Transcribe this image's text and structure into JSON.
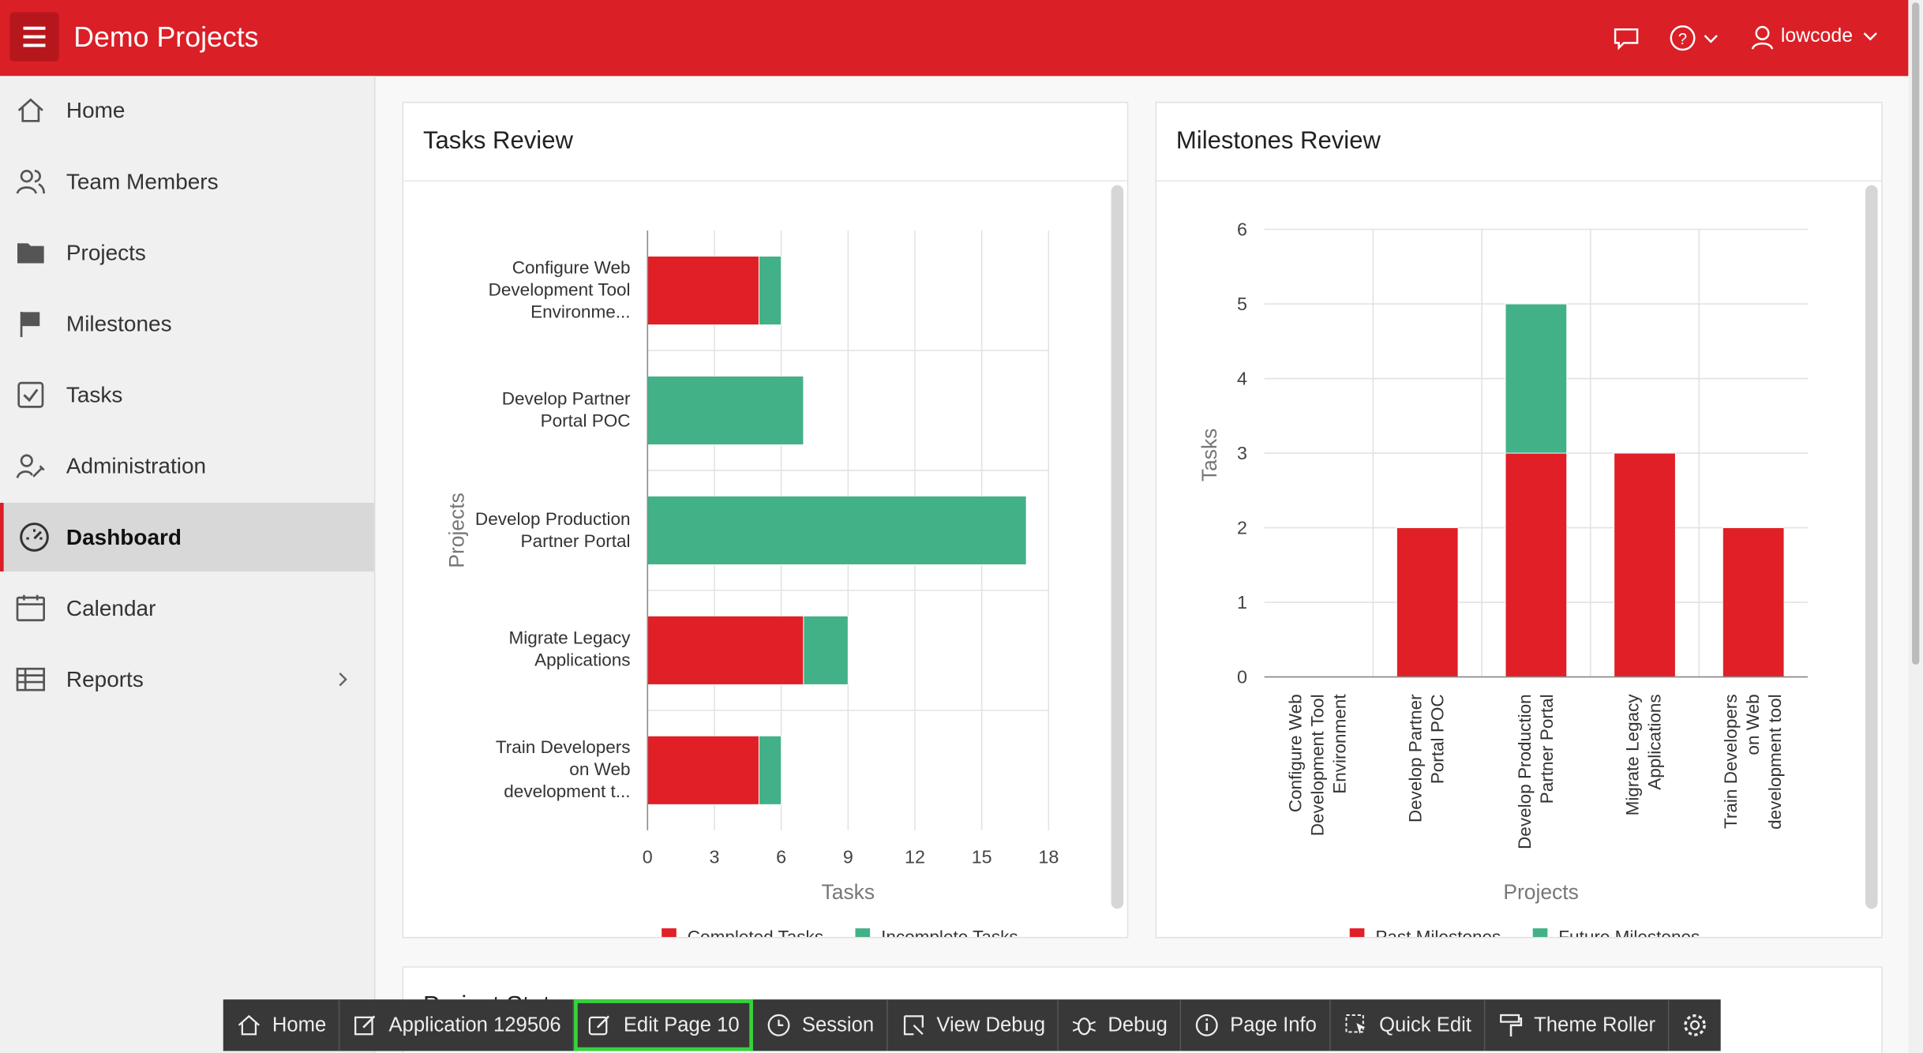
{
  "header": {
    "title": "Demo Projects",
    "user": "lowcode"
  },
  "nav": [
    "Home",
    "Team Members",
    "Projects",
    "Milestones",
    "Tasks",
    "Administration",
    "Dashboard",
    "Calendar",
    "Reports"
  ],
  "chart_data": [
    {
      "type": "hbar",
      "title": "Tasks Review",
      "x_label": "Tasks",
      "y_label": "Projects",
      "categories": [
        "Configure Web Development Tool Environme...",
        "Develop Partner Portal POC",
        "Develop Production Partner Portal",
        "Migrate Legacy Applications",
        "Train Developers on Web development t..."
      ],
      "series": [
        {
          "name": "Completed Tasks",
          "color": "#e01f26",
          "values": [
            5,
            0,
            0,
            7,
            5
          ]
        },
        {
          "name": "Incomplete Tasks",
          "color": "#43b188",
          "values": [
            1,
            7,
            17,
            2,
            1
          ]
        }
      ],
      "xlim": [
        0,
        18
      ],
      "xticks": [
        0,
        3,
        6,
        9,
        12,
        15,
        18
      ],
      "grid": true
    },
    {
      "type": "bar",
      "title": "Milestones Review",
      "x_label": "Projects",
      "y_label": "Tasks",
      "categories": [
        "Configure Web Development Tool Environment",
        "Develop Partner Portal POC",
        "Develop Production Partner Portal",
        "Migrate Legacy Applications",
        "Train Developers on Web development tool"
      ],
      "series": [
        {
          "name": "Past Milestones",
          "color": "#e01f26",
          "values": [
            0,
            2,
            3,
            3,
            2
          ]
        },
        {
          "name": "Future Milestones",
          "color": "#43b188",
          "values": [
            0,
            0,
            2,
            0,
            0
          ]
        }
      ],
      "ylim": [
        0,
        6
      ],
      "yticks": [
        0,
        1,
        2,
        3,
        4,
        5,
        6
      ],
      "grid": true
    }
  ],
  "sections": [
    "Project Status"
  ],
  "toolbar": [
    "Home",
    "Application 129506",
    "Edit Page 10",
    "Session",
    "View Debug",
    "Debug",
    "Page Info",
    "Quick Edit",
    "Theme Roller"
  ]
}
